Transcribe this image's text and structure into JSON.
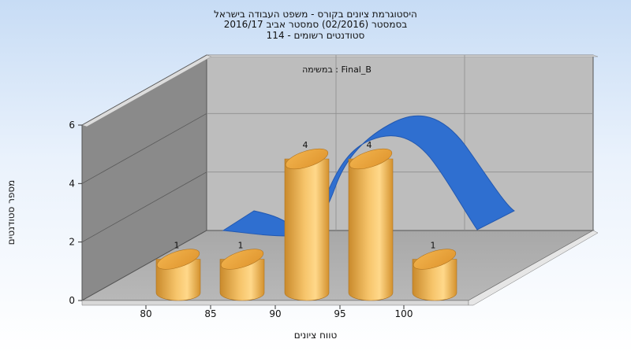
{
  "header": {
    "title_line1": "היסטוגרמת ציונים בקורס - משפט העבודה בישראל",
    "title_line2": "בסמסטר  (02/2016)  סמסטר אביב 2016/17",
    "title_line3": "סטודנטים רשומים - 114"
  },
  "chart_data": {
    "type": "bar",
    "subtitle": "במשימה : Final_B",
    "xlabel": "טווח ציונים",
    "ylabel": "מספר סטודנטים",
    "x_ticks": [
      "80",
      "85",
      "90",
      "95",
      "100"
    ],
    "y_ticks": [
      "0",
      "2",
      "4",
      "6"
    ],
    "ylim": [
      0,
      6
    ],
    "categories": [
      "80",
      "85",
      "90",
      "95",
      "100"
    ],
    "values": [
      1,
      1,
      4,
      4,
      1
    ],
    "data_labels": [
      "1",
      "1",
      "4",
      "4",
      "1"
    ],
    "bar_color": "#e8a83c",
    "curve_color": "#2f6fd0",
    "three_d": true,
    "grid": true
  }
}
